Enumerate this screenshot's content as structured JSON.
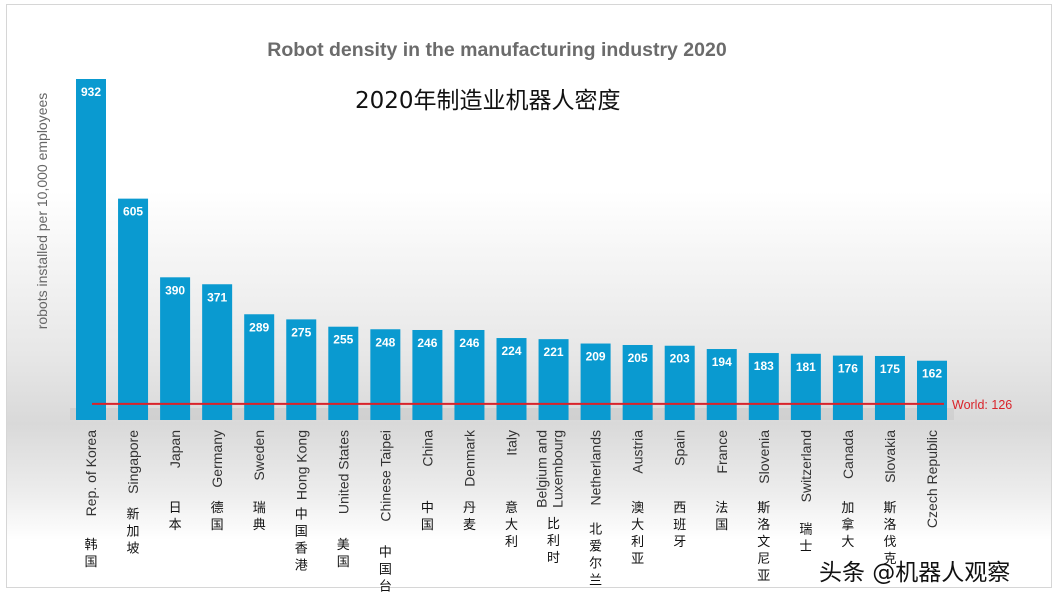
{
  "chart_data": {
    "type": "bar",
    "title": "Robot density in the manufacturing industry 2020",
    "subtitle": "2020年制造业机器人密度",
    "ylabel": "robots installed per 10,000 employees",
    "categories": [
      "Rep. of Korea",
      "Singapore",
      "Japan",
      "Germany",
      "Sweden",
      "Hong Kong",
      "United States",
      "Chinese Taipei",
      "China",
      "Denmark",
      "Italy",
      "Belgium and Luxembourg",
      "Netherlands",
      "Austria",
      "Spain",
      "France",
      "Slovenia",
      "Switzerland",
      "Canada",
      "Slovakia",
      "Czech Republic"
    ],
    "categories_cn": [
      "韩国",
      "新加坡",
      "日本",
      "德国",
      "瑞典",
      "中国香港",
      "美国",
      "中国台湾",
      "中国",
      "丹麦",
      "意大利",
      "比利时",
      "北爱尔兰",
      "澳大利亚",
      "西班牙",
      "法国",
      "斯洛文尼亚",
      "瑞士",
      "加拿大",
      "斯洛伐克",
      ""
    ],
    "values": [
      932,
      605,
      390,
      371,
      289,
      275,
      255,
      248,
      246,
      246,
      224,
      221,
      209,
      205,
      203,
      194,
      183,
      181,
      176,
      175,
      162
    ],
    "reference_line": {
      "label": "World: 126",
      "value": 126,
      "color": "#d9232a"
    },
    "bar_color": "#0a9ad0",
    "ylim": [
      0,
      932
    ],
    "grid": false
  },
  "watermark": "头条 @机器人观察"
}
